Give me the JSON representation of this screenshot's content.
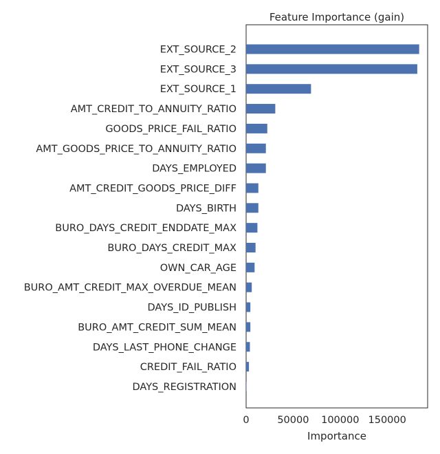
{
  "chart_data": {
    "type": "bar",
    "orientation": "horizontal",
    "title": "Feature Importance (gain)",
    "xlabel": "Importance",
    "ylabel": "",
    "xlim": [
      0,
      193000
    ],
    "xticks": [
      0,
      50000,
      100000,
      150000
    ],
    "xtick_labels": [
      "0",
      "50000",
      "100000",
      "150000"
    ],
    "grid": false,
    "legend": "none",
    "bar_color": "#4c72b0",
    "categories": [
      "EXT_SOURCE_2",
      "EXT_SOURCE_3",
      "EXT_SOURCE_1",
      "AMT_CREDIT_TO_ANNUITY_RATIO",
      "GOODS_PRICE_FAIL_RATIO",
      "AMT_GOODS_PRICE_TO_ANNUITY_RATIO",
      "DAYS_EMPLOYED",
      "AMT_CREDIT_GOODS_PRICE_DIFF",
      "DAYS_BIRTH",
      "BURO_DAYS_CREDIT_ENDDATE_MAX",
      "BURO_DAYS_CREDIT_MAX",
      "OWN_CAR_AGE",
      "BURO_AMT_CREDIT_MAX_OVERDUE_MEAN",
      "DAYS_ID_PUBLISH",
      "BURO_AMT_CREDIT_SUM_MEAN",
      "DAYS_LAST_PHONE_CHANGE",
      "CREDIT_FAIL_RATIO",
      "DAYS_REGISTRATION"
    ],
    "values": [
      184000,
      182000,
      69000,
      31000,
      22500,
      21000,
      21000,
      13000,
      13000,
      12000,
      10000,
      9000,
      6000,
      4500,
      4500,
      4000,
      3000,
      400
    ]
  }
}
